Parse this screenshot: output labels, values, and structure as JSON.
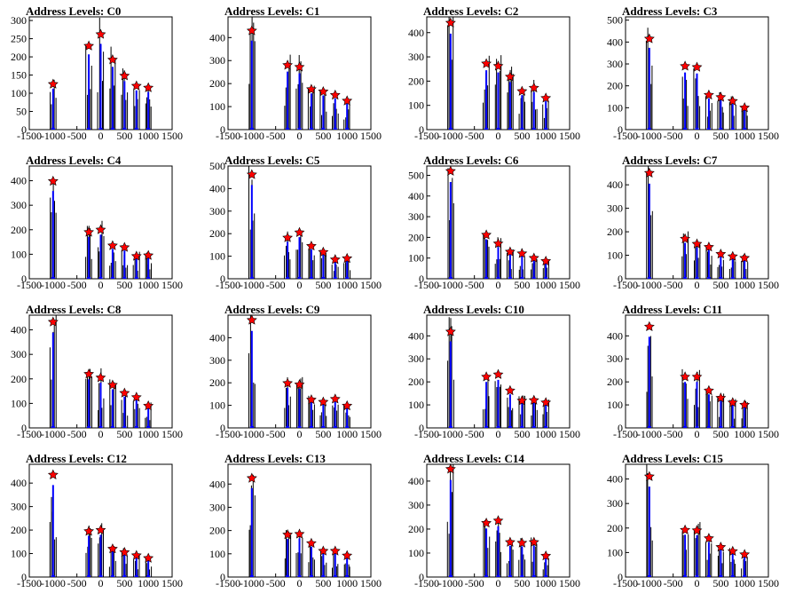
{
  "chart_data": [
    {
      "type": "bar",
      "title": "Address Levels: C0",
      "xlim": [
        -1500,
        1500
      ],
      "ylim": [
        0,
        310
      ],
      "yticks": [
        0,
        50,
        100,
        150,
        200,
        250,
        300
      ],
      "xticks": [
        -1500,
        -1000,
        -500,
        0,
        500,
        1000,
        1500
      ],
      "markers": {
        "x": [
          -1000,
          -250,
          0,
          250,
          500,
          750,
          1000
        ],
        "y": [
          125,
          230,
          262,
          192,
          148,
          120,
          115
        ]
      },
      "colors": {
        "bars": "#0000ff",
        "spikes": "#000000",
        "markers": "#ff0000"
      }
    },
    {
      "type": "bar",
      "title": "Address Levels: C1",
      "xlim": [
        -1500,
        1500
      ],
      "ylim": [
        0,
        490
      ],
      "yticks": [
        0,
        100,
        200,
        300,
        400
      ],
      "xticks": [
        -1500,
        -1000,
        -500,
        0,
        500,
        1000,
        1500
      ],
      "markers": {
        "x": [
          -1000,
          -250,
          0,
          250,
          500,
          750,
          1000
        ],
        "y": [
          430,
          280,
          272,
          175,
          165,
          150,
          125
        ]
      },
      "colors": {
        "bars": "#0000ff",
        "spikes": "#000000",
        "markers": "#ff0000"
      }
    },
    {
      "type": "bar",
      "title": "Address Levels: C2",
      "xlim": [
        -1500,
        1500
      ],
      "ylim": [
        0,
        465
      ],
      "yticks": [
        0,
        100,
        200,
        300,
        400
      ],
      "xticks": [
        -1500,
        -1000,
        -500,
        0,
        500,
        1000,
        1500
      ],
      "markers": {
        "x": [
          -1000,
          -250,
          0,
          250,
          500,
          750,
          1000
        ],
        "y": [
          440,
          272,
          262,
          218,
          158,
          172,
          130
        ]
      },
      "colors": {
        "bars": "#0000ff",
        "spikes": "#000000",
        "markers": "#ff0000"
      }
    },
    {
      "type": "bar",
      "title": "Address Levels: C3",
      "xlim": [
        -1500,
        1500
      ],
      "ylim": [
        0,
        515
      ],
      "yticks": [
        0,
        100,
        200,
        300,
        400,
        500
      ],
      "xticks": [
        -1500,
        -1000,
        -500,
        0,
        500,
        1000,
        1500
      ],
      "markers": {
        "x": [
          -1000,
          -250,
          0,
          250,
          500,
          750,
          1000
        ],
        "y": [
          415,
          290,
          285,
          158,
          148,
          130,
          100
        ]
      },
      "colors": {
        "bars": "#0000ff",
        "spikes": "#000000",
        "markers": "#ff0000"
      }
    },
    {
      "type": "bar",
      "title": "Address Levels: C4",
      "xlim": [
        -1500,
        1500
      ],
      "ylim": [
        0,
        460
      ],
      "yticks": [
        0,
        100,
        200,
        300,
        400
      ],
      "xticks": [
        -1500,
        -1000,
        -500,
        0,
        500,
        1000,
        1500
      ],
      "markers": {
        "x": [
          -1000,
          -250,
          0,
          250,
          500,
          750,
          1000
        ],
        "y": [
          398,
          190,
          200,
          135,
          128,
          92,
          95
        ]
      },
      "colors": {
        "bars": "#0000ff",
        "spikes": "#000000",
        "markers": "#ff0000"
      }
    },
    {
      "type": "bar",
      "title": "Address Levels: C5",
      "xlim": [
        -1500,
        1500
      ],
      "ylim": [
        0,
        500
      ],
      "yticks": [
        0,
        100,
        200,
        300,
        400,
        500
      ],
      "xticks": [
        -1500,
        -1000,
        -500,
        0,
        500,
        1000,
        1500
      ],
      "markers": {
        "x": [
          -1000,
          -250,
          0,
          250,
          500,
          750,
          1000
        ],
        "y": [
          462,
          182,
          205,
          145,
          118,
          85,
          90
        ]
      },
      "colors": {
        "bars": "#0000ff",
        "spikes": "#000000",
        "markers": "#ff0000"
      }
    },
    {
      "type": "bar",
      "title": "Address Levels: C6",
      "xlim": [
        -1500,
        1500
      ],
      "ylim": [
        0,
        545
      ],
      "yticks": [
        0,
        100,
        200,
        300,
        400,
        500
      ],
      "xticks": [
        -1500,
        -1000,
        -500,
        0,
        500,
        1000,
        1500
      ],
      "markers": {
        "x": [
          -1000,
          -250,
          0,
          250,
          500,
          750,
          1000
        ],
        "y": [
          520,
          212,
          170,
          130,
          122,
          100,
          85
        ]
      },
      "colors": {
        "bars": "#0000ff",
        "spikes": "#000000",
        "markers": "#ff0000"
      }
    },
    {
      "type": "bar",
      "title": "Address Levels: C7",
      "xlim": [
        -1500,
        1500
      ],
      "ylim": [
        0,
        480
      ],
      "yticks": [
        0,
        100,
        200,
        300,
        400
      ],
      "xticks": [
        -1500,
        -1000,
        -500,
        0,
        500,
        1000,
        1500
      ],
      "markers": {
        "x": [
          -1000,
          -250,
          0,
          250,
          500,
          750,
          1000
        ],
        "y": [
          450,
          170,
          148,
          135,
          105,
          95,
          88
        ]
      },
      "colors": {
        "bars": "#0000ff",
        "spikes": "#000000",
        "markers": "#ff0000"
      }
    },
    {
      "type": "bar",
      "title": "Address Levels: C8",
      "xlim": [
        -1500,
        1500
      ],
      "ylim": [
        0,
        460
      ],
      "yticks": [
        0,
        100,
        200,
        300,
        400
      ],
      "xticks": [
        -1500,
        -1000,
        -500,
        0,
        500,
        1000,
        1500
      ],
      "markers": {
        "x": [
          -1000,
          -250,
          0,
          250,
          500,
          750,
          1000
        ],
        "y": [
          432,
          220,
          205,
          175,
          142,
          125,
          90
        ]
      },
      "colors": {
        "bars": "#0000ff",
        "spikes": "#000000",
        "markers": "#ff0000"
      }
    },
    {
      "type": "bar",
      "title": "Address Levels: C9",
      "xlim": [
        -1500,
        1500
      ],
      "ylim": [
        0,
        500
      ],
      "yticks": [
        0,
        100,
        200,
        300,
        400
      ],
      "xticks": [
        -1500,
        -1000,
        -500,
        0,
        500,
        1000,
        1500
      ],
      "markers": {
        "x": [
          -1000,
          -250,
          0,
          250,
          500,
          750,
          1000
        ],
        "y": [
          478,
          198,
          192,
          125,
          115,
          128,
          98
        ]
      },
      "colors": {
        "bars": "#0000ff",
        "spikes": "#000000",
        "markers": "#ff0000"
      }
    },
    {
      "type": "bar",
      "title": "Address Levels: C10",
      "xlim": [
        -1500,
        1500
      ],
      "ylim": [
        0,
        490
      ],
      "yticks": [
        0,
        100,
        200,
        300,
        400
      ],
      "xticks": [
        -1500,
        -1000,
        -500,
        0,
        500,
        1000,
        1500
      ],
      "markers": {
        "x": [
          -1000,
          -250,
          0,
          250,
          500,
          750,
          1000
        ],
        "y": [
          418,
          222,
          232,
          162,
          118,
          120,
          110
        ]
      },
      "colors": {
        "bars": "#0000ff",
        "spikes": "#000000",
        "markers": "#ff0000"
      }
    },
    {
      "type": "bar",
      "title": "Address Levels: C11",
      "xlim": [
        -1500,
        1500
      ],
      "ylim": [
        0,
        490
      ],
      "yticks": [
        0,
        100,
        200,
        300,
        400
      ],
      "xticks": [
        -1500,
        -1000,
        -500,
        0,
        500,
        1000,
        1500
      ],
      "markers": {
        "x": [
          -1000,
          -250,
          0,
          250,
          500,
          750,
          1000
        ],
        "y": [
          440,
          222,
          222,
          162,
          130,
          110,
          100
        ]
      },
      "colors": {
        "bars": "#0000ff",
        "spikes": "#000000",
        "markers": "#ff0000"
      }
    },
    {
      "type": "bar",
      "title": "Address Levels: C12",
      "xlim": [
        -1500,
        1500
      ],
      "ylim": [
        0,
        480
      ],
      "yticks": [
        0,
        100,
        200,
        300,
        400
      ],
      "xticks": [
        -1500,
        -1000,
        -500,
        0,
        500,
        1000,
        1500
      ],
      "markers": {
        "x": [
          -1000,
          -250,
          0,
          250,
          500,
          750,
          1000
        ],
        "y": [
          435,
          195,
          200,
          120,
          105,
          92,
          80
        ]
      },
      "colors": {
        "bars": "#0000ff",
        "spikes": "#000000",
        "markers": "#ff0000"
      }
    },
    {
      "type": "bar",
      "title": "Address Levels: C13",
      "xlim": [
        -1500,
        1500
      ],
      "ylim": [
        0,
        485
      ],
      "yticks": [
        0,
        100,
        200,
        300,
        400
      ],
      "xticks": [
        -1500,
        -1000,
        -500,
        0,
        500,
        1000,
        1500
      ],
      "markers": {
        "x": [
          -1000,
          -250,
          0,
          250,
          500,
          750,
          1000
        ],
        "y": [
          425,
          182,
          185,
          145,
          112,
          112,
          92
        ]
      },
      "colors": {
        "bars": "#0000ff",
        "spikes": "#000000",
        "markers": "#ff0000"
      }
    },
    {
      "type": "bar",
      "title": "Address Levels: C14",
      "xlim": [
        -1500,
        1500
      ],
      "ylim": [
        0,
        470
      ],
      "yticks": [
        0,
        100,
        200,
        300,
        400
      ],
      "xticks": [
        -1500,
        -1000,
        -500,
        0,
        500,
        1000,
        1500
      ],
      "markers": {
        "x": [
          -1000,
          -250,
          0,
          250,
          500,
          750,
          1000
        ],
        "y": [
          450,
          225,
          235,
          145,
          142,
          145,
          88
        ]
      },
      "colors": {
        "bars": "#0000ff",
        "spikes": "#000000",
        "markers": "#ff0000"
      }
    },
    {
      "type": "bar",
      "title": "Address Levels: C15",
      "xlim": [
        -1500,
        1500
      ],
      "ylim": [
        0,
        460
      ],
      "yticks": [
        0,
        100,
        200,
        300,
        400
      ],
      "xticks": [
        -1500,
        -1000,
        -500,
        0,
        500,
        1000,
        1500
      ],
      "markers": {
        "x": [
          -1000,
          -250,
          0,
          250,
          500,
          750,
          1000
        ],
        "y": [
          410,
          192,
          190,
          158,
          122,
          105,
          92
        ]
      },
      "colors": {
        "bars": "#0000ff",
        "spikes": "#000000",
        "markers": "#ff0000"
      }
    }
  ]
}
